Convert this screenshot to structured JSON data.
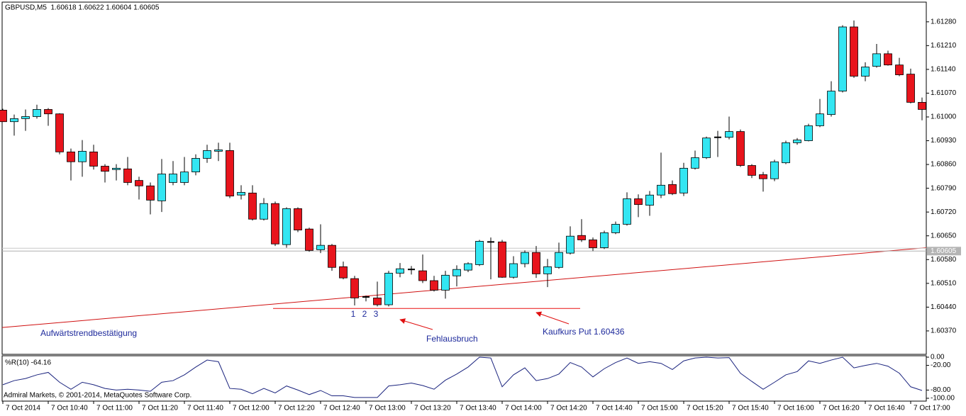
{
  "chart_data": [
    {
      "type": "candlestick",
      "title": "GBPUSD,M5  1.60618 1.60622 1.60604 1.60605",
      "categories": [
        "7 Oct 2014",
        null,
        null,
        null,
        "7 Oct 10:40",
        null,
        null,
        null,
        "7 Oct 11:00",
        null,
        null,
        null,
        "7 Oct 11:20",
        null,
        null,
        null,
        "7 Oct 11:40",
        null,
        null,
        null,
        "7 Oct 12:00",
        null,
        null,
        null,
        "7 Oct 12:20",
        null,
        null,
        null,
        "7 Oct 12:40",
        null,
        null,
        null,
        "7 Oct 13:00",
        null,
        null,
        null,
        "7 Oct 13:20",
        null,
        null,
        null,
        "7 Oct 13:40",
        null,
        null,
        null,
        "7 Oct 14:00",
        null,
        null,
        null,
        "7 Oct 14:20",
        null,
        null,
        null,
        "7 Oct 14:40",
        null,
        null,
        null,
        "7 Oct 15:00",
        null,
        null,
        null,
        "7 Oct 15:20",
        null,
        null,
        null,
        "7 Oct 15:40",
        null,
        null,
        null,
        "7 Oct 16:00",
        null,
        null,
        null,
        "7 Oct 16:20",
        null,
        null,
        null,
        "7 Oct 16:40",
        null,
        null,
        null,
        "7 Oct 17:00",
        null
      ],
      "open": [
        1.6102,
        1.60986,
        1.60995,
        1.61001,
        1.61022,
        1.61009,
        1.60897,
        1.60868,
        1.60897,
        1.60855,
        1.60845,
        1.60847,
        1.60813,
        1.60797,
        1.60753,
        1.60807,
        1.60807,
        1.60838,
        1.60878,
        1.60899,
        1.60901,
        1.6077,
        1.60776,
        1.60699,
        1.60745,
        1.60624,
        1.6073,
        1.6067,
        1.60609,
        1.60622,
        1.60559,
        1.60524,
        1.6047,
        1.60467,
        1.60447,
        1.6054,
        1.60551,
        1.60547,
        1.60518,
        1.6049,
        1.60532,
        1.60549,
        1.60565,
        1.60632,
        1.60632,
        1.60528,
        1.60568,
        1.60601,
        1.60538,
        1.60557,
        1.60599,
        1.60651,
        1.60638,
        1.60615,
        1.60659,
        1.60684,
        1.60759,
        1.6074,
        1.6077,
        1.60801,
        1.60776,
        1.60849,
        1.6088,
        1.6094,
        1.6094,
        1.60957,
        1.60857,
        1.6083,
        1.60818,
        1.60865,
        1.60924,
        1.6093,
        1.60974,
        1.61007,
        1.61076,
        1.61265,
        1.6112,
        1.61149,
        1.61186,
        1.61153,
        1.61126,
        1.61043
      ],
      "high": [
        1.61024,
        1.61007,
        1.61022,
        1.61036,
        1.61026,
        1.61011,
        1.60907,
        1.60932,
        1.60918,
        1.60861,
        1.60861,
        1.60882,
        1.60824,
        1.60807,
        1.60876,
        1.6087,
        1.60882,
        1.6089,
        1.60918,
        1.60924,
        1.60924,
        1.60799,
        1.60799,
        1.60761,
        1.60751,
        1.60734,
        1.60734,
        1.60674,
        1.60684,
        1.60626,
        1.60574,
        1.60532,
        1.60474,
        1.60515,
        1.60547,
        1.6057,
        1.60561,
        1.60595,
        1.60532,
        1.60547,
        1.60563,
        1.60572,
        1.60638,
        1.60645,
        1.60638,
        1.6059,
        1.60607,
        1.6062,
        1.60582,
        1.6063,
        1.60678,
        1.60699,
        1.60645,
        1.60665,
        1.60692,
        1.60778,
        1.60772,
        1.60782,
        1.60895,
        1.60813,
        1.60865,
        1.60901,
        1.60942,
        1.60959,
        1.61001,
        1.60963,
        1.60861,
        1.60838,
        1.60874,
        1.6093,
        1.60938,
        1.6098,
        1.61053,
        1.61105,
        1.6127,
        1.61284,
        1.61161,
        1.61215,
        1.61195,
        1.61174,
        1.61142,
        1.61057
      ],
      "low": [
        1.60986,
        1.60945,
        1.60959,
        1.60995,
        1.60974,
        1.6089,
        1.60813,
        1.60824,
        1.60845,
        1.60807,
        1.60813,
        1.60799,
        1.60757,
        1.60713,
        1.6072,
        1.60799,
        1.60799,
        1.60828,
        1.60865,
        1.6087,
        1.60761,
        1.60757,
        1.60695,
        1.60695,
        1.6062,
        1.60615,
        1.60661,
        1.60603,
        1.60599,
        1.60547,
        1.60522,
        1.60445,
        1.60457,
        1.60442,
        1.60442,
        1.60528,
        1.60536,
        1.60511,
        1.60486,
        1.60465,
        1.60501,
        1.60543,
        1.60561,
        1.60522,
        1.60526,
        1.60524,
        1.60557,
        1.60526,
        1.60499,
        1.60553,
        1.60595,
        1.60632,
        1.60605,
        1.60611,
        1.60655,
        1.6068,
        1.60705,
        1.60709,
        1.60761,
        1.6077,
        1.60767,
        1.60845,
        1.60876,
        1.60882,
        1.60934,
        1.60853,
        1.6082,
        1.6078,
        1.60811,
        1.60861,
        1.60918,
        1.60928,
        1.6097,
        1.61001,
        1.61072,
        1.61115,
        1.61105,
        1.61145,
        1.61151,
        1.6112,
        1.6104,
        1.6099
      ],
      "close": [
        1.60986,
        1.60995,
        1.61001,
        1.61022,
        1.61009,
        1.60897,
        1.60868,
        1.60899,
        1.60855,
        1.6084,
        1.60849,
        1.60807,
        1.60797,
        1.60755,
        1.60832,
        1.60832,
        1.60838,
        1.60878,
        1.60901,
        1.60903,
        1.60767,
        1.60778,
        1.60699,
        1.60745,
        1.60626,
        1.6073,
        1.60667,
        1.60607,
        1.60622,
        1.60557,
        1.60526,
        1.60467,
        1.6047,
        1.60447,
        1.6054,
        1.60553,
        1.60551,
        1.60518,
        1.6049,
        1.60534,
        1.60551,
        1.60568,
        1.60634,
        1.60632,
        1.60528,
        1.60568,
        1.60601,
        1.60538,
        1.60559,
        1.60601,
        1.60649,
        1.60638,
        1.60615,
        1.60659,
        1.60684,
        1.60759,
        1.60742,
        1.6077,
        1.60799,
        1.60774,
        1.60849,
        1.6088,
        1.60938,
        1.6094,
        1.60957,
        1.60857,
        1.60828,
        1.60818,
        1.60868,
        1.60924,
        1.60932,
        1.60974,
        1.61009,
        1.61076,
        1.61265,
        1.6112,
        1.61147,
        1.61186,
        1.61153,
        1.61124,
        1.61043,
        1.61022
      ],
      "up_color": "#33e6f2",
      "down_color": "#e8141c",
      "ylim": [
        1.60301,
        1.61338
      ],
      "yticks": [
        {
          "value": 1.6037,
          "label": "1.60370"
        },
        {
          "value": 1.6044,
          "label": "1.60440"
        },
        {
          "value": 1.6051,
          "label": "1.60510"
        },
        {
          "value": 1.6058,
          "label": "1.60580"
        },
        {
          "value": 1.6065,
          "label": "1.60650"
        },
        {
          "value": 1.6072,
          "label": "1.60720"
        },
        {
          "value": 1.6079,
          "label": "1.60790"
        },
        {
          "value": 1.6086,
          "label": "1.60860"
        },
        {
          "value": 1.6093,
          "label": "1.60930"
        },
        {
          "value": 1.61,
          "label": "1.61000"
        },
        {
          "value": 1.6107,
          "label": "1.61070"
        },
        {
          "value": 1.6114,
          "label": "1.61140"
        },
        {
          "value": 1.6121,
          "label": "1.61210"
        },
        {
          "value": 1.6128,
          "label": "1.61280"
        }
      ],
      "price_line": 1.60605,
      "trendline": {
        "start": 1.6038,
        "end": 1.60615,
        "color": "#d01010"
      },
      "level": {
        "value": 1.60436,
        "color": "#e81010"
      },
      "annotations": [
        "Aufwärtstrendbestätigung",
        "1",
        "2",
        "3",
        "Fehlausbruch",
        "Kaufkurs Put 1.60436"
      ]
    },
    {
      "type": "line",
      "title": "%R(10) -64.16",
      "values": [
        -67,
        -57,
        -52,
        -43,
        -37,
        -61,
        -78,
        -61,
        -67,
        -76,
        -80,
        -78,
        -80,
        -83,
        -61,
        -57,
        -43,
        -24,
        -7,
        -11,
        -76,
        -78,
        -89,
        -76,
        -87,
        -70,
        -80,
        -91,
        -81,
        -94,
        -94,
        -98,
        -98,
        -98,
        -70,
        -67,
        -63,
        -69,
        -78,
        -56,
        -41,
        -24,
        0,
        -2,
        -72,
        -43,
        -26,
        -57,
        -52,
        -41,
        -13,
        -24,
        -48,
        -28,
        -13,
        -2,
        -15,
        -11,
        -15,
        -30,
        -9,
        -2,
        0,
        -2,
        -1,
        -39,
        -59,
        -78,
        -61,
        -43,
        -35,
        -9,
        -15,
        -7,
        0,
        -26,
        -20,
        -15,
        -22,
        -39,
        -72,
        -81
      ],
      "color": "#1a237e",
      "ylim": [
        -100,
        0
      ],
      "yticks": [
        {
          "value": 0,
          "label": "0.00"
        },
        {
          "value": -20,
          "label": "-20.00"
        },
        {
          "value": -80,
          "label": "-80.00"
        },
        {
          "value": -100,
          "label": "-100.00"
        }
      ],
      "copyright": "Admiral Markets, © 2001-2014, MetaQuotes Software Corp."
    }
  ]
}
